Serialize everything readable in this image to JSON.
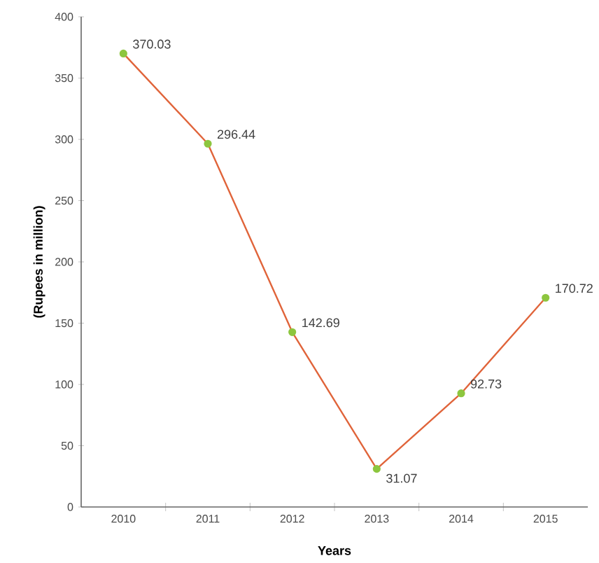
{
  "chart_data": {
    "type": "line",
    "xlabel": "Years",
    "ylabel": "(Rupees in million)",
    "categories": [
      "2010",
      "2011",
      "2012",
      "2013",
      "2014",
      "2015"
    ],
    "values": [
      370.03,
      296.44,
      142.69,
      31.07,
      92.73,
      170.72
    ],
    "color": "#e0643a",
    "marker": "circle",
    "data_labels": true,
    "ylim": [
      0,
      400
    ],
    "yticks": [
      0,
      50,
      100,
      150,
      200,
      250,
      300,
      350,
      400
    ]
  }
}
